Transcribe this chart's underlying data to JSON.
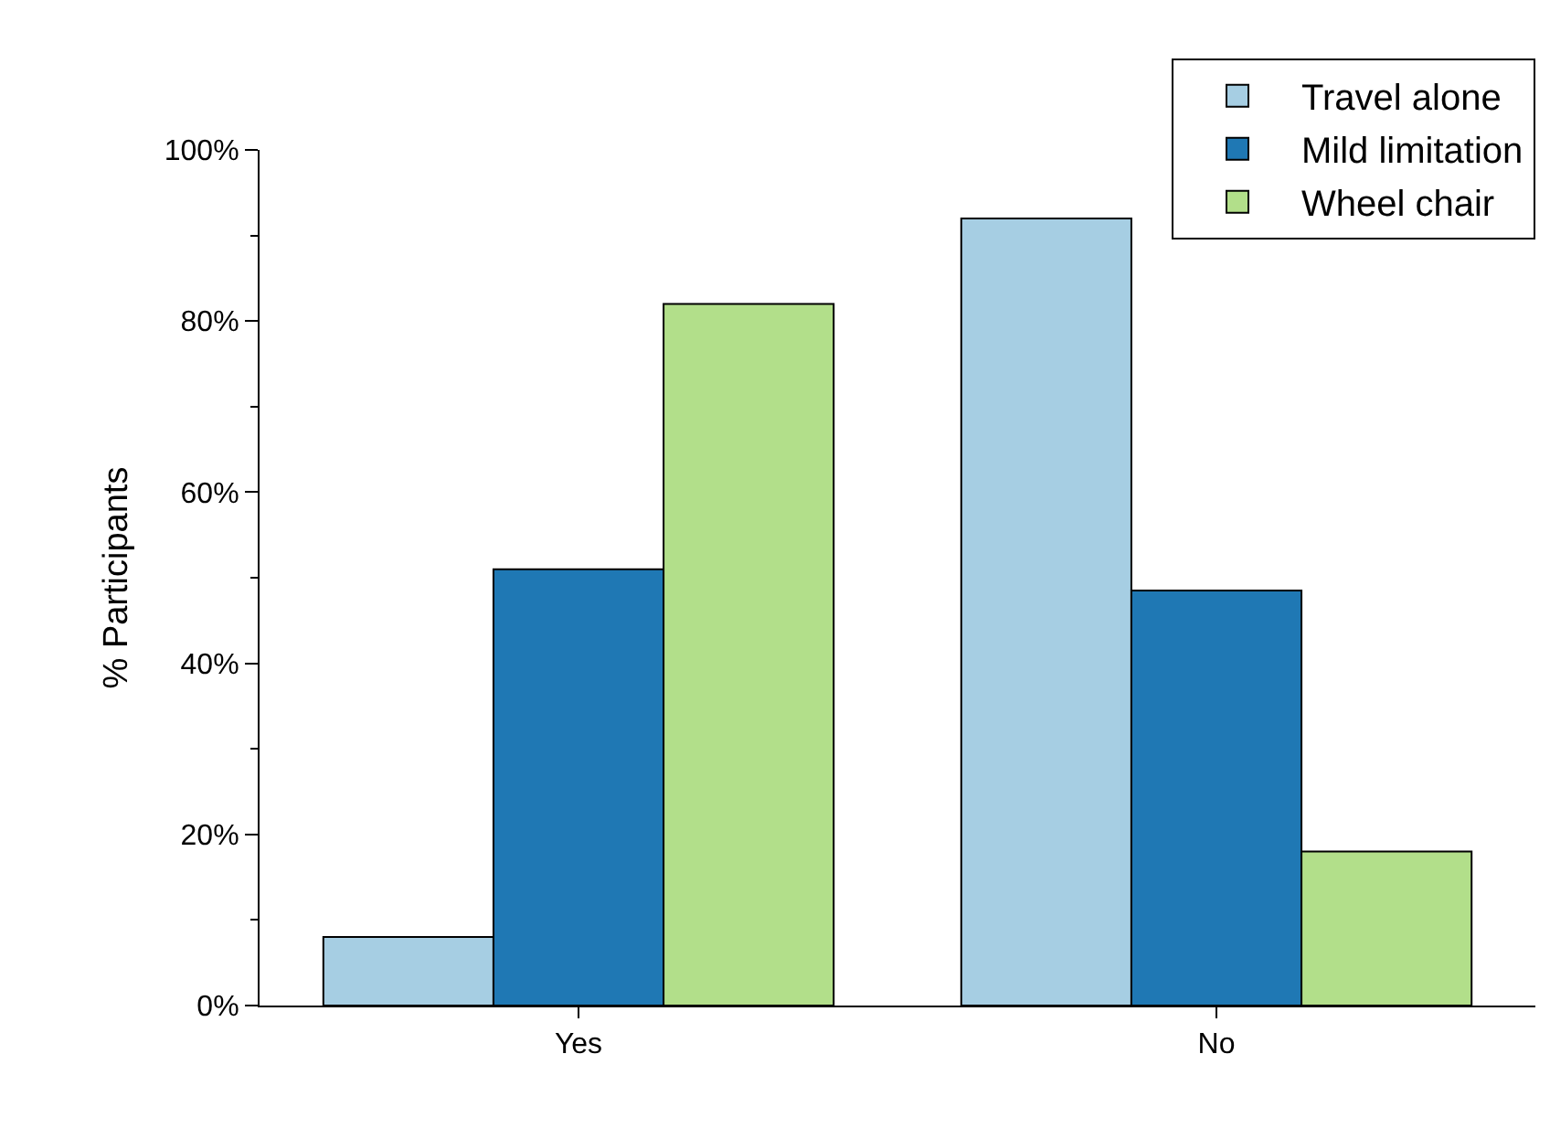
{
  "chart_data": {
    "type": "bar",
    "ylabel": "% Participants",
    "categories": [
      "Yes",
      "No"
    ],
    "series": [
      {
        "name": "Travel alone",
        "color": "#a6cee3",
        "values": [
          8,
          92
        ]
      },
      {
        "name": "Mild limitation",
        "color": "#1f78b4",
        "values": [
          51,
          48.5
        ]
      },
      {
        "name": "Wheel chair",
        "color": "#b2df8a",
        "values": [
          82,
          18
        ]
      }
    ],
    "ylim": [
      0,
      100
    ],
    "yticks": [
      {
        "value": 0,
        "label": "0%"
      },
      {
        "value": 20,
        "label": "20%"
      },
      {
        "value": 40,
        "label": "40%"
      },
      {
        "value": 60,
        "label": "60%"
      },
      {
        "value": 80,
        "label": "80%"
      },
      {
        "value": 100,
        "label": "100%"
      }
    ],
    "grid": false,
    "legend": "top right"
  }
}
